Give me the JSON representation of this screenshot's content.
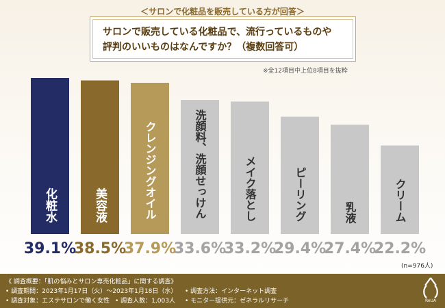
{
  "header": {
    "top_label": "＜サロンで化粧品を販売している方が回答＞",
    "question_line1": "サロンで販売している化粧品で、流行っているものや",
    "question_line2": "評判のいいものはなんですか？（複数回答可）",
    "note": "※全12項目中上位8項目を抜粋"
  },
  "chart_data": {
    "type": "bar",
    "title": "サロンで販売している化粧品で、流行っているものや評判のいいものはなんですか？（複数回答可）",
    "categories": [
      "化粧水",
      "美容液",
      "クレンジングオイル",
      "洗顔料、洗顔せっけん",
      "メイク落とし",
      "ピーリング",
      "乳液",
      "クリーム"
    ],
    "values": [
      39.1,
      38.5,
      37.9,
      33.6,
      33.2,
      29.4,
      27.4,
      22.2
    ],
    "value_labels": [
      "39.1%",
      "38.5%",
      "37.9%",
      "33.6%",
      "33.2%",
      "29.4%",
      "27.4%",
      "22.2%"
    ],
    "ylim": [
      0,
      39.1
    ],
    "unit": "%",
    "xlabel": "",
    "ylabel": "",
    "colors": [
      "#232c64",
      "#8a6a2c",
      "#b59a5a",
      "#c8c8c8",
      "#c8c8c8",
      "#c8c8c8",
      "#c8c8c8",
      "#c8c8c8"
    ],
    "label_colors": [
      "#232c64",
      "#8a6a2c",
      "#b59a5a",
      "#a3a3a3",
      "#a3a3a3",
      "#a3a3a3",
      "#a3a3a3",
      "#a3a3a3"
    ]
  },
  "sample_size": "(n=976人)",
  "footer": {
    "title": "《 調査概要：「肌の悩みとサロン専売化粧品」に関する調査》",
    "period": "• 調査期間：2023年1月17日（火）～2023年1月18日（水）",
    "method": "• 調査方法：インターネット調査",
    "target": "• 調査対象：エステサロンで働く女性",
    "count": "• 調査人数：1,003人",
    "provider": "• モニター提供元：ゼネラルリサーチ",
    "logo_text": "ReUA"
  },
  "colors": {
    "footer_bg": "#7b6228",
    "accent": "#8a6a2c"
  }
}
